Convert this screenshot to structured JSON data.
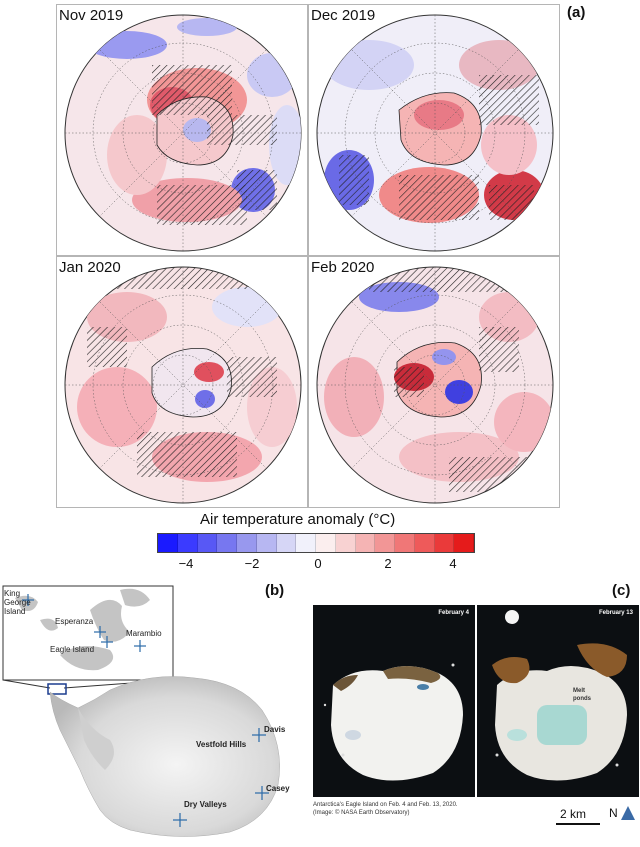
{
  "figure": {
    "panel_a_tag": "(a)",
    "panel_b_tag": "(b)",
    "panel_c_tag": "(c)"
  },
  "panel_a": {
    "maps": [
      {
        "title": "Nov 2019"
      },
      {
        "title": "Dec 2019"
      },
      {
        "title": "Jan 2020"
      },
      {
        "title": "Feb 2020"
      }
    ],
    "colorbar": {
      "title": "Air temperature anomaly (°C)",
      "ticks": [
        "−4",
        "−2",
        "0",
        "2",
        "4"
      ],
      "colors": [
        "#1a1aff",
        "#3b3bff",
        "#5858f5",
        "#7777f0",
        "#9898ee",
        "#b7b7f2",
        "#d6d6f6",
        "#f1f1fb",
        "#fbeeee",
        "#f8d2d2",
        "#f5b4b4",
        "#f29696",
        "#f07777",
        "#ee5a5a",
        "#ea3a3a",
        "#e51b1b"
      ]
    }
  },
  "panel_b": {
    "inset_labels": {
      "king_george": "King George Island",
      "esperanza": "Esperanza",
      "eagle_island": "Eagle Island",
      "marambio": "Marambio"
    },
    "stations": {
      "davis": "Davis",
      "vestfold": "Vestfold Hills",
      "casey": "Casey",
      "dry_valleys": "Dry Valleys"
    }
  },
  "panel_c": {
    "photo1_date": "February 4",
    "photo2_date": "February 13",
    "melt_label": "Melt ponds",
    "caption_line1": "Antarctica's Eagle Island on Feb. 4 and Feb. 13, 2020.",
    "caption_line2": "(Image: © NASA Earth Observatory)",
    "scale_label": "2 km",
    "north_label": "N"
  }
}
